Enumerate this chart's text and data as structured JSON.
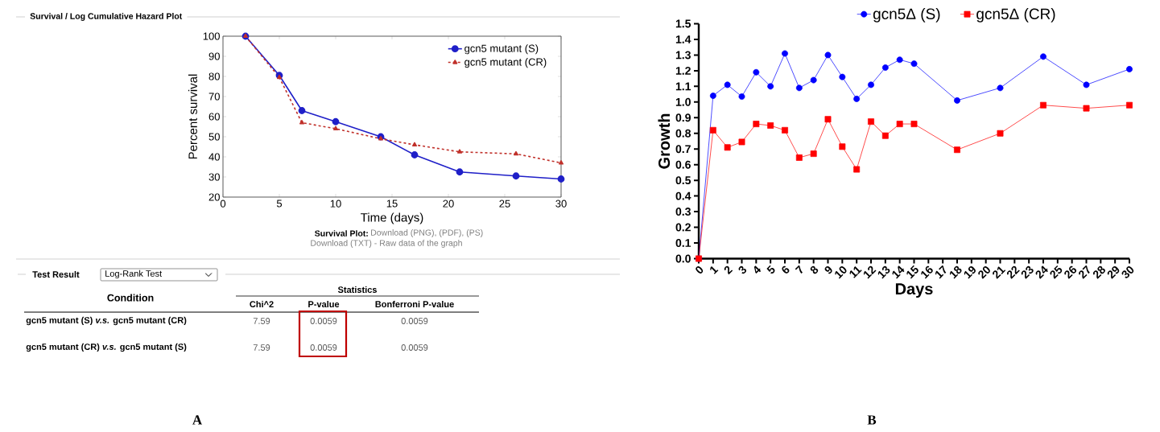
{
  "chart_data": [
    {
      "type": "line",
      "title": "Survival / Log Cumulative Hazard Plot",
      "xlabel": "Time (days)",
      "ylabel": "Percent survival",
      "x": [
        2,
        5,
        7,
        10,
        14,
        17,
        21,
        26,
        30
      ],
      "series": [
        {
          "name": "gcn5 mutant (S)",
          "color": "#1f1fc8",
          "marker": "circle",
          "line_style": "solid",
          "values": [
            100,
            80.5,
            63,
            57.5,
            50,
            41,
            32.5,
            30.5,
            29
          ]
        },
        {
          "name": "gcn5 mutant (CR)",
          "color": "#c0302a",
          "marker": "triangle",
          "line_style": "dashed",
          "values": [
            100,
            79.5,
            57,
            54,
            49,
            46,
            42.5,
            41.5,
            37
          ]
        }
      ],
      "xlim": [
        0,
        30
      ],
      "ylim": [
        20,
        100
      ],
      "xticks": [
        0,
        5,
        10,
        15,
        20,
        25,
        30
      ],
      "yticks": [
        20,
        30,
        40,
        50,
        60,
        70,
        80,
        90,
        100
      ],
      "legend": "top right",
      "annotations": [
        "Survival Plot:",
        "Download (PNG), (PDF), (PS)",
        "Download (TXT) - Raw data of the graph",
        "A"
      ]
    },
    {
      "type": "other",
      "title": "Test Result",
      "annotations": [
        "Log-Rank Test",
        "Condition",
        "Statistics",
        "Chi^2",
        "P-value",
        "Bonferroni P-value",
        "gcn5 mutant (S) *v.s.* gcn5 mutant (CR)",
        "7.59",
        "0.0059",
        "0.0059",
        "gcn5 mutant (CR) *v.s.* gcn5 mutant (S)",
        "7.59",
        "0.0059",
        "0.0059"
      ]
    },
    {
      "type": "line",
      "xlabel": "Days",
      "ylabel": "Growth",
      "x": [
        0,
        1,
        2,
        3,
        4,
        5,
        6,
        7,
        8,
        9,
        10,
        11,
        12,
        13,
        14,
        15,
        18,
        21,
        24,
        27,
        30
      ],
      "series": [
        {
          "name": "gcn5Δ (S)",
          "color": "#0000ff",
          "marker": "circle",
          "line_style": "solid",
          "values": [
            0,
            1.04,
            1.11,
            1.035,
            1.19,
            1.1,
            1.31,
            1.09,
            1.14,
            1.3,
            1.16,
            1.02,
            1.11,
            1.22,
            1.27,
            1.245,
            1.01,
            1.09,
            1.29,
            1.11,
            1.21
          ]
        },
        {
          "name": "gcn5Δ (CR)",
          "color": "#ff0000",
          "marker": "square",
          "line_style": "solid",
          "values": [
            0,
            0.82,
            0.71,
            0.745,
            0.86,
            0.85,
            0.82,
            0.645,
            0.67,
            0.89,
            0.715,
            0.57,
            0.875,
            0.785,
            0.86,
            0.86,
            0.695,
            0.8,
            0.98,
            0.96,
            0.98
          ]
        }
      ],
      "xlim": [
        0,
        30
      ],
      "ylim": [
        0,
        1.5
      ],
      "xticks": [
        0,
        1,
        2,
        3,
        4,
        5,
        6,
        7,
        8,
        9,
        10,
        11,
        12,
        13,
        14,
        15,
        16,
        17,
        18,
        19,
        20,
        21,
        22,
        23,
        24,
        25,
        26,
        27,
        28,
        29,
        30
      ],
      "yticks": [
        {
          "value": 0,
          "label": "0.0"
        },
        {
          "value": 0.1,
          "label": "0.1"
        },
        {
          "value": 0.2,
          "label": "0.2"
        },
        {
          "value": 0.3,
          "label": "0.3"
        },
        {
          "value": 0.4,
          "label": "0.4"
        },
        {
          "value": 0.5,
          "label": "0.5"
        },
        {
          "value": 0.6,
          "label": "0.6"
        },
        {
          "value": 0.7,
          "label": "0.7"
        },
        {
          "value": 0.8,
          "label": "0.8"
        },
        {
          "value": 0.9,
          "label": "0.9"
        },
        {
          "value": 1,
          "label": "1.0"
        },
        {
          "value": 1.1,
          "label": "1.1"
        },
        {
          "value": 1.2,
          "label": "1.2"
        },
        {
          "value": 1.3,
          "label": "1.3"
        },
        {
          "value": 1.4,
          "label": "1.4"
        },
        {
          "value": 1.5,
          "label": "1.5"
        }
      ],
      "legend": "top",
      "annotations": [
        "B"
      ]
    }
  ]
}
